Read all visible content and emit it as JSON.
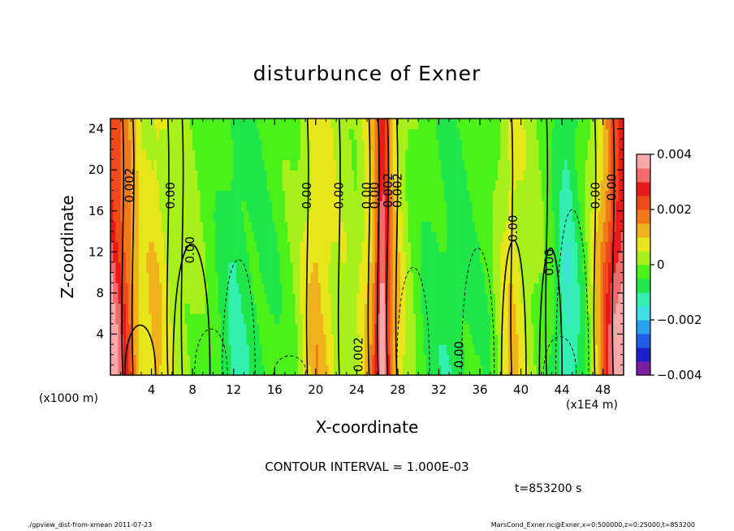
{
  "chart_data": {
    "type": "contour",
    "title": "disturbunce of Exner",
    "xlabel": "X-coordinate",
    "ylabel": "Z-coordinate",
    "x_unit_left": "(x1000 m)",
    "x_unit_right": "(x1E4 m)",
    "xlim": [
      0,
      50
    ],
    "ylim": [
      0,
      25
    ],
    "x_ticks": [
      4,
      8,
      12,
      16,
      20,
      24,
      28,
      32,
      36,
      40,
      44,
      48
    ],
    "y_ticks": [
      4,
      8,
      12,
      16,
      20,
      24
    ],
    "colorbar_ticks": [
      "0.004",
      "0.002",
      "0",
      "−0.002",
      "−0.004"
    ],
    "colorbar_range": [
      -0.004,
      0.004
    ],
    "contour_interval": "CONTOUR INTERVAL = 1.000E-03",
    "contour_labels": [
      "0.002",
      "0.00",
      "0.00",
      "0.00",
      "0.00",
      "0.00",
      "0.002",
      "0.002",
      "0.00",
      "0.00",
      "0.00",
      "0.00",
      "0.00",
      "0.002",
      "0.00"
    ],
    "anomaly_profile": [
      {
        "x": 0.0,
        "v": 0.0032
      },
      {
        "x": 1.5,
        "v": 0.0021
      },
      {
        "x": 3.0,
        "v": 0.0007
      },
      {
        "x": 4.5,
        "v": 0.0009
      },
      {
        "x": 6.0,
        "v": 0.0003
      },
      {
        "x": 8.0,
        "v": 0.0001
      },
      {
        "x": 10.0,
        "v": -0.0003
      },
      {
        "x": 12.0,
        "v": -0.0009
      },
      {
        "x": 14.0,
        "v": -0.0006
      },
      {
        "x": 16.0,
        "v": -0.0004
      },
      {
        "x": 18.0,
        "v": 0.0
      },
      {
        "x": 20.0,
        "v": 0.0011
      },
      {
        "x": 22.0,
        "v": 0.0004
      },
      {
        "x": 24.0,
        "v": 0.0002
      },
      {
        "x": 25.5,
        "v": 0.0012
      },
      {
        "x": 26.5,
        "v": 0.0036
      },
      {
        "x": 27.5,
        "v": 0.0013
      },
      {
        "x": 29.0,
        "v": 0.0001
      },
      {
        "x": 31.0,
        "v": -0.0006
      },
      {
        "x": 33.0,
        "v": -0.0007
      },
      {
        "x": 35.0,
        "v": -0.0005
      },
      {
        "x": 37.0,
        "v": -0.0003
      },
      {
        "x": 39.0,
        "v": 0.0009
      },
      {
        "x": 41.0,
        "v": 0.0002
      },
      {
        "x": 43.0,
        "v": -0.0004
      },
      {
        "x": 44.5,
        "v": -0.0014
      },
      {
        "x": 46.0,
        "v": -0.0005
      },
      {
        "x": 47.5,
        "v": 0.001
      },
      {
        "x": 49.0,
        "v": 0.0028
      },
      {
        "x": 50.0,
        "v": 0.0034
      }
    ]
  },
  "time_label": "t=853200  s",
  "footer_left": "./gpview_dist-from-xmean   2011-07-23",
  "footer_right": "MarsCond_Exner.nc@Exner,x=0:500000,z=0:25000,t=853200"
}
